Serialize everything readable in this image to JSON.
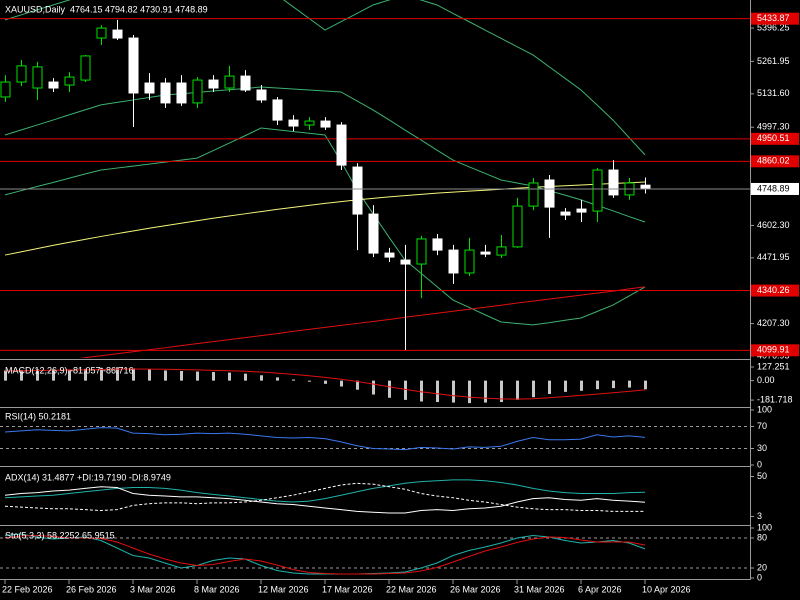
{
  "chart_data": [
    {
      "type": "candlestick",
      "title": "XAUUSD,Daily  4764.15 4794.82 4730.91 4748.89",
      "categories": [
        "22 Feb 2026",
        null,
        null,
        null,
        "26 Feb 2026",
        null,
        null,
        null,
        "3 Mar 2026",
        null,
        null,
        null,
        "8 Mar 2026",
        null,
        null,
        null,
        "12 Mar 2026",
        null,
        null,
        null,
        "17 Mar 2026",
        null,
        null,
        null,
        "22 Mar 2026",
        null,
        null,
        null,
        "26 Mar 2026",
        null,
        null,
        null,
        "31 Mar 2026",
        null,
        null,
        null,
        "6 Apr 2026",
        null,
        null,
        null,
        "10 Apr 2026"
      ],
      "open": [
        5119,
        5179,
        5155,
        5179,
        5167,
        5187,
        5356,
        5388,
        5356,
        5175,
        5175,
        5175,
        5095,
        5187,
        5155,
        5203,
        5147,
        5107,
        5026,
        5006,
        5022,
        5006,
        4837,
        4648,
        4491,
        4463,
        4447,
        4548,
        4503,
        4411,
        4495,
        4483,
        4516,
        4680,
        4785,
        4656,
        4668,
        4660,
        4825,
        4725,
        4764.15
      ],
      "high": [
        5207,
        5268,
        5260,
        5195,
        5219,
        5288,
        5408,
        5429,
        5368,
        5215,
        5195,
        5207,
        5199,
        5207,
        5244,
        5227,
        5167,
        5119,
        5046,
        5038,
        5038,
        5018,
        4853,
        4684,
        4512,
        4524,
        4560,
        4568,
        4524,
        4552,
        4524,
        4564,
        4713,
        4793,
        4805,
        4672,
        4705,
        4833,
        4865,
        4793,
        4794.82
      ],
      "low": [
        5099,
        5163,
        5107,
        5139,
        5139,
        5179,
        5328,
        5348,
        4998,
        5107,
        5075,
        5083,
        5075,
        5139,
        5139,
        5139,
        5095,
        5006,
        4982,
        4986,
        4986,
        4825,
        4503,
        4475,
        4455,
        4101,
        4310,
        4483,
        4367,
        4399,
        4475,
        4471,
        4512,
        4664,
        4552,
        4624,
        4616,
        4616,
        4713,
        4705,
        4730.91
      ],
      "close": [
        5179,
        5244,
        5240,
        5155,
        5199,
        5284,
        5396,
        5356,
        5135,
        5135,
        5095,
        5095,
        5187,
        5155,
        5203,
        5147,
        5107,
        5026,
        5002,
        5022,
        4998,
        4845,
        4648,
        4491,
        4475,
        4447,
        4548,
        4503,
        4411,
        4503,
        4487,
        4516,
        4680,
        4773,
        4676,
        4644,
        4656,
        4825,
        4725,
        4773,
        4748.89
      ],
      "up_color": "#00e000",
      "down_color": "#ffffff",
      "overlays": [
        {
          "color": "#3cb371",
          "values": [
            5429,
            5449,
            5469,
            5489,
            5509,
            5529,
            5549,
            5556,
            5562,
            5569,
            5576,
            5582,
            5589,
            5577,
            5565,
            5553,
            5541,
            5529,
            5482,
            5435,
            5388,
            5422,
            5455,
            5489,
            5509,
            5529,
            5509,
            5489,
            5455,
            5422,
            5388,
            5355,
            5321,
            5288,
            5241,
            5194,
            5147,
            5087,
            5026,
            4956,
            4886
          ]
        },
        {
          "color": "#3cb371",
          "values": [
            4966,
            4986,
            5006,
            5026,
            5047,
            5067,
            5087,
            5097,
            5107,
            5117,
            5127,
            5132,
            5137,
            5143,
            5148,
            5153,
            5159,
            5155,
            5151,
            5147,
            5143,
            5139,
            5103,
            5067,
            5027,
            4986,
            4946,
            4905,
            4865,
            4838,
            4812,
            4785,
            4773,
            4761,
            4742,
            4724,
            4705,
            4683,
            4661,
            4638,
            4616
          ]
        },
        {
          "color": "#3cb371",
          "values": [
            4725,
            4742,
            4759,
            4775,
            4792,
            4809,
            4825,
            4833,
            4841,
            4849,
            4857,
            4865,
            4873,
            4903,
            4933,
            4963,
            4994,
            4987,
            4980,
            4973,
            4966,
            4860,
            4745,
            4650,
            4555,
            4463,
            4410,
            4356,
            4302,
            4273,
            4243,
            4214,
            4208,
            4202,
            4211,
            4221,
            4230,
            4256,
            4282,
            4318,
            4355
          ]
        },
        {
          "color": "#f5f57a",
          "values": [
            4483,
            4496,
            4509,
            4522,
            4534,
            4546,
            4558,
            4569,
            4580,
            4591,
            4601,
            4611,
            4621,
            4631,
            4640,
            4649,
            4658,
            4667,
            4675,
            4683,
            4691,
            4698,
            4705,
            4711,
            4717,
            4722,
            4727,
            4732,
            4736,
            4740,
            4744,
            4748,
            4752,
            4756,
            4759,
            4762,
            4765,
            4768,
            4771,
            4774,
            4777
          ]
        },
        {
          "color": "#e01010",
          "values": [
            4029,
            4037,
            4045,
            4053,
            4062,
            4070,
            4078,
            4086,
            4094,
            4102,
            4110,
            4119,
            4127,
            4135,
            4143,
            4151,
            4159,
            4167,
            4176,
            4184,
            4192,
            4200,
            4208,
            4216,
            4224,
            4233,
            4241,
            4249,
            4257,
            4265,
            4273,
            4281,
            4290,
            4298,
            4306,
            4314,
            4322,
            4330,
            4338,
            4347,
            4355
          ]
        }
      ],
      "levels": [
        5433.87,
        4950.51,
        4860.02,
        4340.26,
        4099.91
      ],
      "level_color": "#e00000",
      "price_line_color": "#8c8c8c",
      "ylim": [
        4069,
        5509
      ],
      "yticks": [
        5396.25,
        5261.95,
        {
          "value": 5131.6,
          "label": "5131.60"
        },
        {
          "value": 4997.3,
          "label": "4997.30"
        },
        {
          "value": 4602.3,
          "label": "4602.30"
        },
        4471.95,
        {
          "value": 4207.3,
          "label": "4207.30"
        },
        4076.95
      ]
    },
    {
      "type": "macd",
      "title": "MACD(12,26,9) -81.057 -86.716",
      "values": [
        95,
        100,
        105,
        105,
        105,
        110,
        120,
        125,
        115,
        105,
        95,
        90,
        85,
        80,
        75,
        65,
        50,
        30,
        10,
        -10,
        -30,
        -55,
        -85,
        -130,
        -160,
        -180,
        -195,
        -200,
        -205,
        -210,
        -205,
        -200,
        -180,
        -155,
        -125,
        -105,
        -95,
        -80,
        -70,
        -65,
        -81.057
      ],
      "color": "#c8c8c8",
      "signal": [
        90,
        92,
        95,
        97,
        99,
        101,
        104,
        107,
        109,
        108,
        106,
        103,
        100,
        96,
        92,
        87,
        80,
        70,
        58,
        45,
        30,
        13,
        -7,
        -32,
        -57,
        -82,
        -104,
        -123,
        -140,
        -154,
        -164,
        -171,
        -173,
        -169,
        -160,
        -149,
        -138,
        -126,
        -113,
        -100,
        -86.716
      ],
      "signal_color": "#e01010",
      "ylim": [
        -237,
        174
      ],
      "yticks": [
        127.251,
        {
          "value": 0,
          "label": "0.00"
        },
        -181.718
      ]
    },
    {
      "type": "line",
      "title": "RSI(14) 50.2181",
      "series": [
        {
          "color": "#3c78f0",
          "values": [
            60,
            62,
            64,
            63,
            62,
            65,
            68,
            67,
            58,
            57,
            55,
            56,
            58,
            57,
            58,
            56,
            53,
            50,
            49,
            50,
            48,
            42,
            35,
            30,
            29,
            28,
            32,
            31,
            29,
            33,
            32,
            34,
            43,
            50,
            46,
            46,
            47,
            55,
            51,
            53,
            50.2181
          ]
        }
      ],
      "levels": [
        70,
        30
      ],
      "ylim": [
        0,
        100
      ],
      "yticks": [
        100,
        70,
        30,
        0
      ]
    },
    {
      "type": "line",
      "title": "ADX(14) 31.4877 +DI:19.7190 -DI:8.9749",
      "series": [
        {
          "color": "#20b2aa",
          "values": [
            25,
            26,
            27,
            28,
            30,
            32,
            34,
            36,
            37,
            37,
            36,
            34,
            31,
            29,
            27,
            25,
            23,
            21,
            20,
            21,
            24,
            28,
            32,
            36,
            39,
            42,
            44,
            45,
            46,
            46,
            45,
            43,
            40,
            36,
            33,
            31,
            30,
            30,
            30,
            31,
            31.4877
          ]
        },
        {
          "color": "#ffffff",
          "dashed": false,
          "values": [
            28,
            30,
            31,
            33,
            34,
            36,
            38,
            37,
            30,
            28,
            27,
            26,
            26,
            25,
            24,
            22,
            20,
            18,
            17,
            15,
            13,
            11,
            9,
            8,
            7,
            7,
            10,
            11,
            10,
            12,
            13,
            15,
            20,
            24,
            25,
            23,
            22,
            24,
            22,
            21,
            19.719
          ]
        },
        {
          "color": "#ffffff",
          "dashed": true,
          "values": [
            15,
            14,
            13,
            12,
            12,
            11,
            10,
            11,
            16,
            18,
            19,
            19,
            18,
            19,
            19,
            20,
            22,
            25,
            28,
            32,
            36,
            40,
            42,
            41,
            38,
            35,
            30,
            27,
            25,
            22,
            20,
            17,
            14,
            12,
            11,
            11,
            10,
            10,
            9,
            9,
            8.9749
          ]
        }
      ],
      "ylim": [
        0,
        60
      ],
      "yticks": [
        50,
        3
      ]
    },
    {
      "type": "line",
      "title": "Sto(5,3,3) 58.2252 65.9515",
      "series": [
        {
          "color": "#20b2aa",
          "values": [
            85,
            88,
            82,
            78,
            80,
            82,
            75,
            60,
            45,
            40,
            30,
            20,
            25,
            35,
            40,
            38,
            25,
            15,
            10,
            8,
            8,
            8,
            8,
            9,
            10,
            12,
            20,
            30,
            45,
            55,
            62,
            70,
            80,
            85,
            82,
            75,
            70,
            72,
            75,
            70,
            58.2252
          ]
        },
        {
          "color": "#e01010",
          "values": [
            80,
            84,
            85,
            83,
            80,
            80,
            79,
            72,
            60,
            48,
            38,
            30,
            25,
            27,
            33,
            38,
            34,
            26,
            17,
            11,
            9,
            8,
            8,
            8,
            9,
            10,
            14,
            21,
            32,
            43,
            54,
            62,
            71,
            78,
            82,
            81,
            76,
            72,
            72,
            72,
            65.9515
          ]
        }
      ],
      "levels": [
        80,
        20
      ],
      "ylim": [
        0,
        100
      ],
      "yticks": [
        100,
        80,
        20,
        0
      ]
    }
  ]
}
